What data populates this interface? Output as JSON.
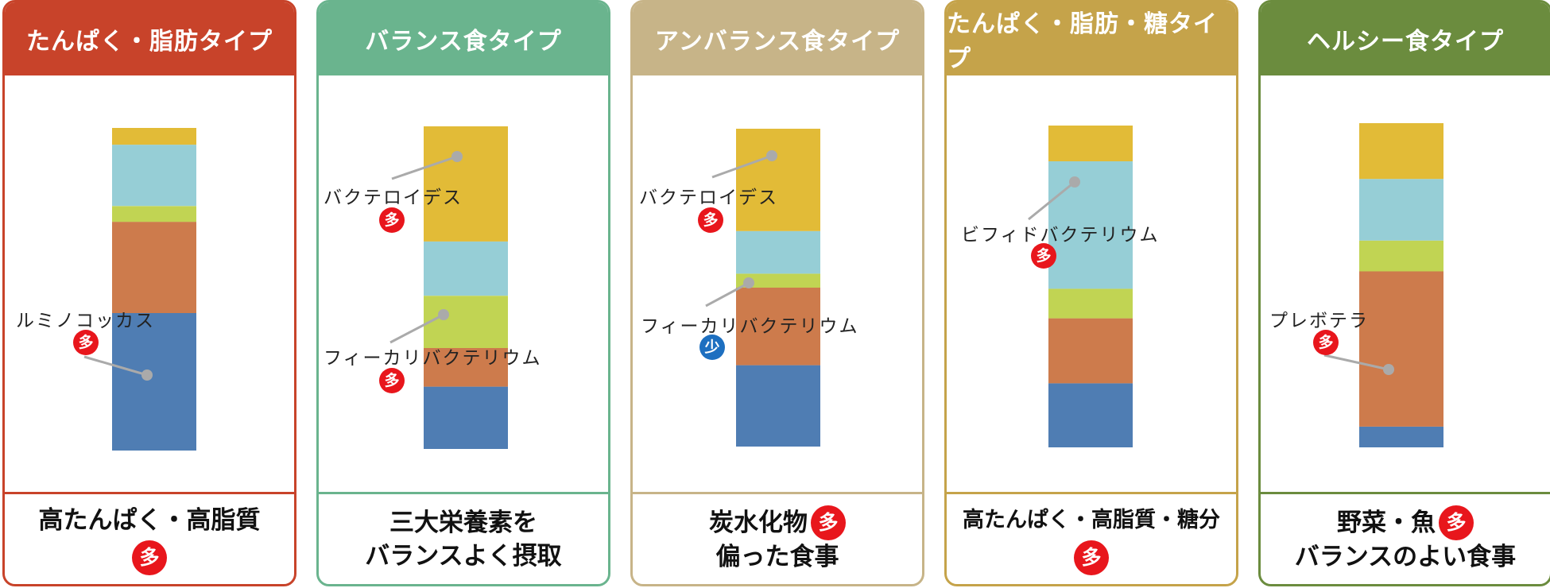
{
  "colors": {
    "segments": [
      "#4f7db3",
      "#cd7b4c",
      "#c1d453",
      "#96ced6",
      "#e2bb37"
    ],
    "badge_many": "#e8161c",
    "badge_few": "#1d6fc0",
    "leader": "#aaaaaa"
  },
  "chart_data": [
    {
      "type": "bar",
      "title": "たんぱく・脂肪タイプ",
      "stacked": true,
      "ylim": [
        0,
        100
      ],
      "values": [
        42.6,
        28.3,
        4.9,
        19.0,
        5.2
      ],
      "footer": [
        "高たんぱく・高脂質"
      ],
      "footer_badge": "多",
      "annotations": [
        {
          "label": "ルミノコッカス",
          "badge": "多",
          "segment": 0
        }
      ]
    },
    {
      "type": "bar",
      "title": "バランス食タイプ",
      "stacked": true,
      "ylim": [
        0,
        100
      ],
      "values": [
        19.3,
        12.0,
        16.2,
        16.8,
        35.7
      ],
      "footer": [
        "三大栄養素を",
        "バランスよく摂取"
      ],
      "annotations": [
        {
          "label": "バクテロイデス",
          "badge": "多",
          "segment": 4
        },
        {
          "label": "フィーカリバクテリウム",
          "badge": "多",
          "segment": 2
        }
      ]
    },
    {
      "type": "bar",
      "title": "アンバランス食タイプ",
      "stacked": true,
      "ylim": [
        0,
        100
      ],
      "values": [
        25.6,
        24.4,
        4.4,
        13.4,
        32.2
      ],
      "footer": [
        "炭水化物",
        "偏った食事"
      ],
      "footer_inline_badge": "多",
      "annotations": [
        {
          "label": "バクテロイデス",
          "badge": "多",
          "segment": 4
        },
        {
          "label": "フィーカリバクテリウム",
          "badge": "少",
          "segment": 2
        }
      ]
    },
    {
      "type": "bar",
      "title": "たんぱく・脂肪・糖タイプ",
      "stacked": true,
      "ylim": [
        0,
        100
      ],
      "values": [
        19.9,
        20.2,
        9.2,
        39.6,
        11.1
      ],
      "footer": [
        "高たんぱく・高脂質・糖分"
      ],
      "footer_badge": "多",
      "annotations": [
        {
          "label": "ビフィドバクテリウム",
          "badge": "多",
          "segment": 3
        }
      ]
    },
    {
      "type": "bar",
      "title": "ヘルシー食タイプ",
      "stacked": true,
      "ylim": [
        0,
        100
      ],
      "values": [
        6.4,
        47.9,
        9.5,
        19.0,
        17.2
      ],
      "footer": [
        "野菜・魚",
        "バランスのよい食事"
      ],
      "footer_inline_badge": "多",
      "annotations": [
        {
          "label": "プレボテラ",
          "badge": "多",
          "segment": 1
        }
      ]
    }
  ]
}
